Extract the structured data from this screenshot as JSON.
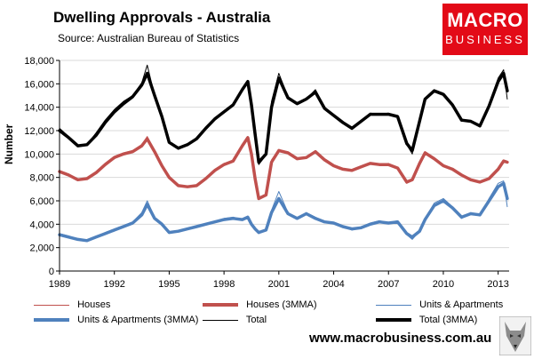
{
  "header": {
    "title": "Dwelling Approvals - Australia",
    "source": "Source:   Australian Bureau of Statistics"
  },
  "logo": {
    "line1": "MACRO",
    "line2": "BUSINESS"
  },
  "website": "www.macrobusiness.com.au",
  "colors": {
    "houses": "#c0504d",
    "units": "#4f81bd",
    "total": "#000000",
    "brand": "#e30a17"
  },
  "chart_data": {
    "type": "line",
    "title": "Dwelling Approvals - Australia",
    "xlabel": "",
    "ylabel": "Number",
    "xlim": [
      1989,
      2013.6
    ],
    "ylim": [
      0,
      18000
    ],
    "x_ticks": [
      1989,
      1992,
      1995,
      1998,
      2001,
      2004,
      2007,
      2010,
      2013
    ],
    "y_ticks": [
      0,
      2000,
      4000,
      6000,
      8000,
      10000,
      12000,
      14000,
      16000,
      18000
    ],
    "y_tick_labels": [
      "0",
      "2,000",
      "4,000",
      "6,000",
      "8,000",
      "10,000",
      "12,000",
      "14,000",
      "16,000",
      "18,000"
    ],
    "series": [
      {
        "name": "Houses",
        "style": "thin",
        "color": "#c0504d",
        "x": [
          1989.0,
          1989.5,
          1990.0,
          1990.5,
          1991.0,
          1991.5,
          1992.0,
          1992.5,
          1993.0,
          1993.5,
          1993.8,
          1994.2,
          1994.6,
          1995.0,
          1995.5,
          1996.0,
          1996.5,
          1997.0,
          1997.5,
          1998.0,
          1998.5,
          1999.0,
          1999.3,
          1999.5,
          1999.7,
          1999.9,
          2000.3,
          2000.6,
          2001.0,
          2001.5,
          2002.0,
          2002.5,
          2003.0,
          2003.5,
          2004.0,
          2004.5,
          2005.0,
          2005.5,
          2006.0,
          2006.5,
          2007.0,
          2007.5,
          2008.0,
          2008.3,
          2008.7,
          2009.0,
          2009.5,
          2010.0,
          2010.5,
          2011.0,
          2011.5,
          2012.0,
          2012.5,
          2013.0,
          2013.3,
          2013.5
        ],
        "values": [
          8600,
          8300,
          7800,
          7900,
          8500,
          9200,
          9800,
          10100,
          10300,
          10800,
          11500,
          10200,
          9000,
          8000,
          7300,
          7200,
          7300,
          8000,
          8700,
          9200,
          9400,
          10800,
          11500,
          10000,
          7800,
          6100,
          6500,
          9500,
          10400,
          10100,
          9600,
          9700,
          10300,
          9500,
          9000,
          8700,
          8600,
          8900,
          9200,
          9100,
          9200,
          8800,
          7500,
          7800,
          9300,
          10200,
          9600,
          9000,
          8700,
          8200,
          7800,
          7600,
          7900,
          8700,
          9500,
          9300
        ]
      },
      {
        "name": "Houses (3MMA)",
        "style": "thick",
        "color": "#c0504d",
        "x": [
          1989.0,
          1989.5,
          1990.0,
          1990.5,
          1991.0,
          1991.5,
          1992.0,
          1992.5,
          1993.0,
          1993.5,
          1993.8,
          1994.2,
          1994.6,
          1995.0,
          1995.5,
          1996.0,
          1996.5,
          1997.0,
          1997.5,
          1998.0,
          1998.5,
          1999.0,
          1999.3,
          1999.5,
          1999.7,
          1999.9,
          2000.3,
          2000.6,
          2001.0,
          2001.5,
          2002.0,
          2002.5,
          2003.0,
          2003.5,
          2004.0,
          2004.5,
          2005.0,
          2005.5,
          2006.0,
          2006.5,
          2007.0,
          2007.5,
          2008.0,
          2008.3,
          2008.7,
          2009.0,
          2009.5,
          2010.0,
          2010.5,
          2011.0,
          2011.5,
          2012.0,
          2012.5,
          2013.0,
          2013.3,
          2013.5
        ],
        "values": [
          8500,
          8200,
          7800,
          7900,
          8400,
          9100,
          9700,
          10000,
          10200,
          10700,
          11300,
          10200,
          9000,
          8000,
          7300,
          7200,
          7300,
          7900,
          8600,
          9100,
          9400,
          10700,
          11400,
          10000,
          7900,
          6200,
          6500,
          9300,
          10300,
          10100,
          9600,
          9700,
          10200,
          9500,
          9000,
          8700,
          8600,
          8900,
          9200,
          9100,
          9100,
          8800,
          7600,
          7800,
          9200,
          10100,
          9600,
          9000,
          8700,
          8200,
          7800,
          7600,
          7900,
          8700,
          9400,
          9300
        ]
      },
      {
        "name": "Units & Apartments",
        "style": "thin",
        "color": "#4f81bd",
        "x": [
          1989.0,
          1989.5,
          1990.0,
          1990.5,
          1991.0,
          1991.5,
          1992.0,
          1992.5,
          1993.0,
          1993.5,
          1993.8,
          1994.2,
          1994.6,
          1995.0,
          1995.5,
          1996.0,
          1996.5,
          1997.0,
          1997.5,
          1998.0,
          1998.5,
          1999.0,
          1999.3,
          1999.5,
          1999.7,
          1999.9,
          2000.3,
          2000.6,
          2001.0,
          2001.5,
          2002.0,
          2002.5,
          2003.0,
          2003.5,
          2004.0,
          2004.5,
          2005.0,
          2005.5,
          2006.0,
          2006.5,
          2007.0,
          2007.5,
          2008.0,
          2008.3,
          2008.7,
          2009.0,
          2009.5,
          2010.0,
          2010.5,
          2011.0,
          2011.5,
          2012.0,
          2012.5,
          2013.0,
          2013.3,
          2013.5
        ],
        "values": [
          3200,
          3000,
          2700,
          2600,
          2900,
          3300,
          3600,
          3900,
          4200,
          5000,
          6000,
          4600,
          4100,
          3300,
          3400,
          3600,
          3800,
          4000,
          4200,
          4500,
          4600,
          4400,
          4700,
          4000,
          3600,
          3200,
          3500,
          5200,
          6800,
          5000,
          4500,
          5000,
          4600,
          4200,
          4100,
          3800,
          3500,
          3700,
          4100,
          4300,
          4100,
          4300,
          3100,
          2700,
          3400,
          4500,
          5800,
          6200,
          5500,
          4500,
          5000,
          4700,
          6200,
          7500,
          7700,
          5500
        ]
      },
      {
        "name": "Units & Apartments (3MMA)",
        "style": "thick",
        "color": "#4f81bd",
        "x": [
          1989.0,
          1989.5,
          1990.0,
          1990.5,
          1991.0,
          1991.5,
          1992.0,
          1992.5,
          1993.0,
          1993.5,
          1993.8,
          1994.2,
          1994.6,
          1995.0,
          1995.5,
          1996.0,
          1996.5,
          1997.0,
          1997.5,
          1998.0,
          1998.5,
          1999.0,
          1999.3,
          1999.5,
          1999.7,
          1999.9,
          2000.3,
          2000.6,
          2001.0,
          2001.5,
          2002.0,
          2002.5,
          2003.0,
          2003.5,
          2004.0,
          2004.5,
          2005.0,
          2005.5,
          2006.0,
          2006.5,
          2007.0,
          2007.5,
          2008.0,
          2008.3,
          2008.7,
          2009.0,
          2009.5,
          2010.0,
          2010.5,
          2011.0,
          2011.5,
          2012.0,
          2012.5,
          2013.0,
          2013.3,
          2013.5
        ],
        "values": [
          3100,
          2900,
          2700,
          2600,
          2900,
          3200,
          3500,
          3800,
          4100,
          4800,
          5700,
          4500,
          4000,
          3300,
          3400,
          3600,
          3800,
          4000,
          4200,
          4400,
          4500,
          4400,
          4600,
          4000,
          3600,
          3300,
          3500,
          5000,
          6200,
          4900,
          4500,
          4900,
          4500,
          4200,
          4100,
          3800,
          3600,
          3700,
          4000,
          4200,
          4100,
          4200,
          3200,
          2900,
          3400,
          4400,
          5600,
          6000,
          5400,
          4600,
          4900,
          4800,
          6000,
          7200,
          7500,
          6200
        ]
      },
      {
        "name": "Total",
        "style": "thin",
        "color": "#000000",
        "x": [
          1989.0,
          1989.5,
          1990.0,
          1990.5,
          1991.0,
          1991.5,
          1992.0,
          1992.5,
          1993.0,
          1993.5,
          1993.8,
          1994.2,
          1994.6,
          1995.0,
          1995.5,
          1996.0,
          1996.5,
          1997.0,
          1997.5,
          1998.0,
          1998.5,
          1999.0,
          1999.3,
          1999.5,
          1999.7,
          1999.9,
          2000.3,
          2000.6,
          2001.0,
          2001.5,
          2002.0,
          2002.5,
          2003.0,
          2003.5,
          2004.0,
          2004.5,
          2005.0,
          2005.5,
          2006.0,
          2006.5,
          2007.0,
          2007.5,
          2008.0,
          2008.3,
          2008.7,
          2009.0,
          2009.5,
          2010.0,
          2010.5,
          2011.0,
          2011.5,
          2012.0,
          2012.5,
          2013.0,
          2013.3,
          2013.5
        ],
        "values": [
          12200,
          11500,
          10700,
          10800,
          11800,
          12900,
          13800,
          14500,
          15000,
          16100,
          17600,
          15000,
          13200,
          10900,
          10400,
          10800,
          11400,
          12300,
          13000,
          13700,
          14300,
          15600,
          16300,
          14200,
          11600,
          9100,
          9900,
          14500,
          16900,
          14900,
          14400,
          14700,
          15500,
          13900,
          13300,
          12600,
          12100,
          12800,
          13500,
          13400,
          13500,
          13300,
          10800,
          10000,
          13000,
          14800,
          15500,
          15200,
          14200,
          12800,
          12800,
          12300,
          14300,
          16500,
          17200,
          14700
        ]
      },
      {
        "name": "Total (3MMA)",
        "style": "thick",
        "color": "#000000",
        "x": [
          1989.0,
          1989.5,
          1990.0,
          1990.5,
          1991.0,
          1991.5,
          1992.0,
          1992.5,
          1993.0,
          1993.5,
          1993.8,
          1994.2,
          1994.6,
          1995.0,
          1995.5,
          1996.0,
          1996.5,
          1997.0,
          1997.5,
          1998.0,
          1998.5,
          1999.0,
          1999.3,
          1999.5,
          1999.7,
          1999.9,
          2000.3,
          2000.6,
          2001.0,
          2001.5,
          2002.0,
          2002.5,
          2003.0,
          2003.5,
          2004.0,
          2004.5,
          2005.0,
          2005.5,
          2006.0,
          2006.5,
          2007.0,
          2007.5,
          2008.0,
          2008.3,
          2008.7,
          2009.0,
          2009.5,
          2010.0,
          2010.5,
          2011.0,
          2011.5,
          2012.0,
          2012.5,
          2013.0,
          2013.3,
          2013.5
        ],
        "values": [
          12000,
          11400,
          10700,
          10800,
          11600,
          12700,
          13600,
          14300,
          14900,
          15900,
          16900,
          15000,
          13200,
          11000,
          10500,
          10800,
          11300,
          12200,
          13000,
          13600,
          14200,
          15500,
          16200,
          14200,
          11700,
          9300,
          10000,
          14000,
          16500,
          14800,
          14300,
          14700,
          15300,
          13900,
          13300,
          12700,
          12200,
          12800,
          13400,
          13400,
          13400,
          13200,
          10900,
          10300,
          12800,
          14700,
          15400,
          15100,
          14200,
          12900,
          12800,
          12400,
          14100,
          16200,
          16900,
          15400
        ]
      }
    ],
    "legend": [
      "Houses",
      "Houses (3MMA)",
      "Units & Apartments",
      "Units & Apartments (3MMA)",
      "Total",
      "Total (3MMA)"
    ],
    "legend_position": "bottom"
  }
}
